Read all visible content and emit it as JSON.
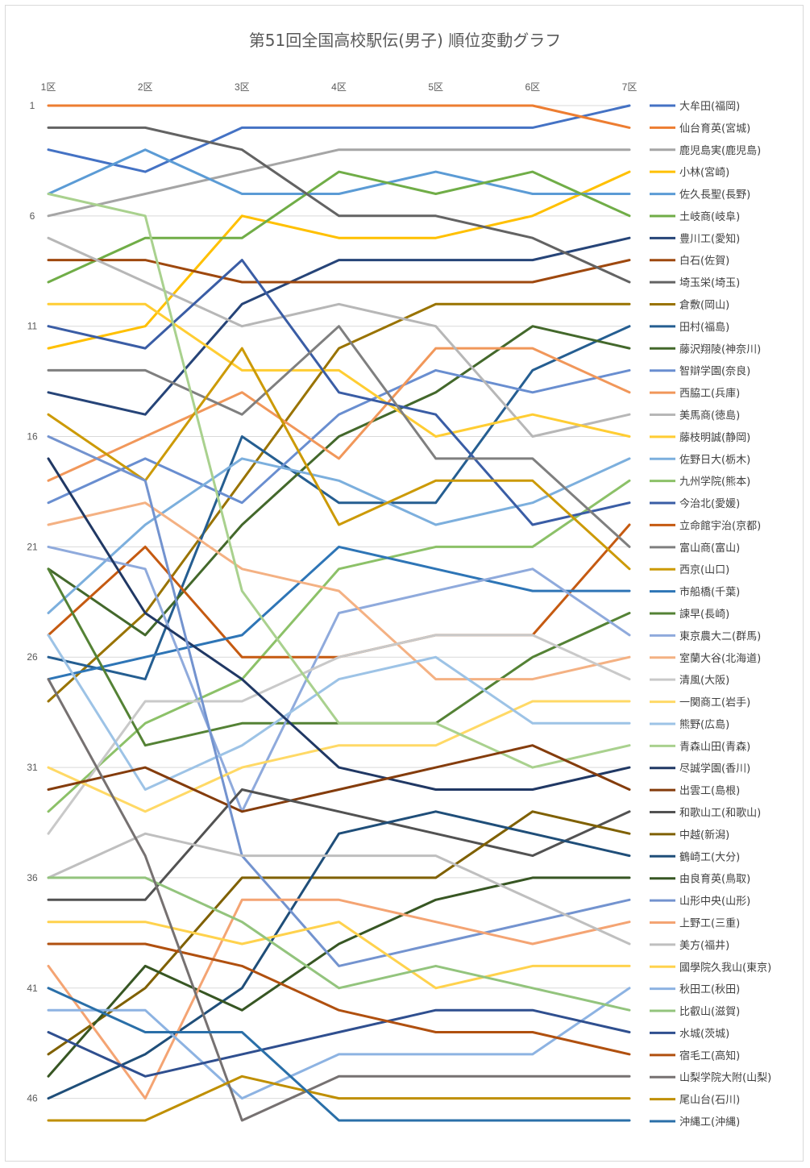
{
  "chart_data": {
    "type": "line",
    "title": "第51回全国高校駅伝(男子) 順位変動グラフ",
    "categories": [
      "1区",
      "2区",
      "3区",
      "4区",
      "5区",
      "6区",
      "7区"
    ],
    "y_ticks": [
      "1",
      "6",
      "11",
      "16",
      "21",
      "26",
      "31",
      "36",
      "41",
      "46"
    ],
    "ylim": [
      1,
      47
    ],
    "y_reversed": true,
    "grid": true,
    "legend_position": "right",
    "series": [
      {
        "name": "大牟田(福岡)",
        "color": "#4472c4",
        "values": [
          3,
          4,
          2,
          2,
          2,
          2,
          1
        ]
      },
      {
        "name": "仙台育英(宮城)",
        "color": "#ed7d31",
        "values": [
          1,
          1,
          1,
          1,
          1,
          1,
          2
        ]
      },
      {
        "name": "鹿児島実(鹿児島)",
        "color": "#a5a5a5",
        "values": [
          6,
          5,
          4,
          3,
          3,
          3,
          3
        ]
      },
      {
        "name": "小林(宮崎)",
        "color": "#ffc000",
        "values": [
          12,
          11,
          6,
          7,
          7,
          6,
          4
        ]
      },
      {
        "name": "佐久長聖(長野)",
        "color": "#5b9bd5",
        "values": [
          5,
          3,
          5,
          5,
          4,
          5,
          5
        ]
      },
      {
        "name": "土岐商(岐阜)",
        "color": "#70ad47",
        "values": [
          9,
          7,
          7,
          4,
          5,
          4,
          6
        ]
      },
      {
        "name": "豊川工(愛知)",
        "color": "#264478",
        "values": [
          14,
          15,
          10,
          8,
          8,
          8,
          7
        ]
      },
      {
        "name": "白石(佐賀)",
        "color": "#9e480e",
        "values": [
          8,
          8,
          9,
          9,
          9,
          9,
          8
        ]
      },
      {
        "name": "埼玉栄(埼玉)",
        "color": "#636363",
        "values": [
          2,
          2,
          3,
          6,
          6,
          7,
          9
        ]
      },
      {
        "name": "倉敷(岡山)",
        "color": "#997300",
        "values": [
          28,
          24,
          18,
          12,
          10,
          10,
          10
        ]
      },
      {
        "name": "田村(福島)",
        "color": "#255e91",
        "values": [
          26,
          27,
          16,
          19,
          19,
          13,
          11
        ]
      },
      {
        "name": "藤沢翔陵(神奈川)",
        "color": "#43682b",
        "values": [
          22,
          25,
          20,
          16,
          14,
          11,
          12
        ]
      },
      {
        "name": "智辯学園(奈良)",
        "color": "#698ed0",
        "values": [
          19,
          17,
          19,
          15,
          13,
          14,
          13
        ]
      },
      {
        "name": "西脇工(兵庫)",
        "color": "#f1975a",
        "values": [
          18,
          16,
          14,
          17,
          12,
          12,
          14
        ]
      },
      {
        "name": "美馬商(徳島)",
        "color": "#b7b7b7",
        "values": [
          7,
          9,
          11,
          10,
          11,
          16,
          15
        ]
      },
      {
        "name": "藤枝明誠(静岡)",
        "color": "#ffcd33",
        "values": [
          10,
          10,
          13,
          13,
          16,
          15,
          16
        ]
      },
      {
        "name": "佐野日大(栃木)",
        "color": "#7cafdd",
        "values": [
          24,
          20,
          17,
          18,
          20,
          19,
          17
        ]
      },
      {
        "name": "九州学院(熊本)",
        "color": "#8cc168",
        "values": [
          33,
          29,
          27,
          22,
          21,
          21,
          18
        ]
      },
      {
        "name": "今治北(愛媛)",
        "color": "#3a5da5",
        "values": [
          11,
          12,
          8,
          14,
          15,
          20,
          19
        ]
      },
      {
        "name": "立命館宇治(京都)",
        "color": "#c55a11",
        "values": [
          25,
          21,
          26,
          26,
          25,
          25,
          20
        ]
      },
      {
        "name": "富山商(富山)",
        "color": "#7f7f7f",
        "values": [
          13,
          13,
          15,
          11,
          17,
          17,
          21
        ]
      },
      {
        "name": "西京(山口)",
        "color": "#cc9a06",
        "values": [
          15,
          18,
          12,
          20,
          18,
          18,
          22
        ]
      },
      {
        "name": "市船橋(千葉)",
        "color": "#2e75b6",
        "values": [
          27,
          26,
          25,
          21,
          22,
          23,
          23
        ]
      },
      {
        "name": "諫早(長崎)",
        "color": "#548235",
        "values": [
          22,
          30,
          29,
          29,
          29,
          26,
          24
        ]
      },
      {
        "name": "東京農大二(群馬)",
        "color": "#8faadc",
        "values": [
          21,
          22,
          33,
          24,
          23,
          22,
          25
        ]
      },
      {
        "name": "室蘭大谷(北海道)",
        "color": "#f4b183",
        "values": [
          20,
          19,
          22,
          23,
          27,
          27,
          26
        ]
      },
      {
        "name": "清風(大阪)",
        "color": "#c9c9c9",
        "values": [
          34,
          28,
          28,
          26,
          25,
          25,
          27
        ]
      },
      {
        "name": "一関商工(岩手)",
        "color": "#ffd966",
        "values": [
          31,
          33,
          31,
          30,
          30,
          28,
          28
        ]
      },
      {
        "name": "熊野(広島)",
        "color": "#9dc3e6",
        "values": [
          25,
          32,
          30,
          27,
          26,
          29,
          29
        ]
      },
      {
        "name": "青森山田(青森)",
        "color": "#a9d18e",
        "values": [
          5,
          6,
          23,
          29,
          29,
          31,
          30
        ]
      },
      {
        "name": "尽誠学園(香川)",
        "color": "#203864",
        "values": [
          17,
          24,
          27,
          31,
          32,
          32,
          31
        ]
      },
      {
        "name": "出雲工(島根)",
        "color": "#843c0c",
        "values": [
          32,
          31,
          33,
          32,
          31,
          30,
          32
        ]
      },
      {
        "name": "和歌山工(和歌山)",
        "color": "#525252",
        "values": [
          37,
          37,
          32,
          33,
          34,
          35,
          33
        ]
      },
      {
        "name": "中越(新潟)",
        "color": "#7f6000",
        "values": [
          44,
          41,
          36,
          36,
          36,
          33,
          34
        ]
      },
      {
        "name": "鶴崎工(大分)",
        "color": "#1f4e79",
        "values": [
          46,
          44,
          41,
          34,
          33,
          34,
          35
        ]
      },
      {
        "name": "由良育英(鳥取)",
        "color": "#375623",
        "values": [
          45,
          40,
          42,
          39,
          37,
          36,
          36
        ]
      },
      {
        "name": "山形中央(山形)",
        "color": "#7393cf",
        "values": [
          16,
          18,
          35,
          40,
          39,
          38,
          37
        ]
      },
      {
        "name": "上野工(三重)",
        "color": "#f4a473",
        "values": [
          40,
          46,
          37,
          37,
          38,
          39,
          38
        ]
      },
      {
        "name": "美方(福井)",
        "color": "#bfbfbf",
        "values": [
          36,
          34,
          35,
          35,
          35,
          37,
          39
        ]
      },
      {
        "name": "國學院久我山(東京)",
        "color": "#ffd24d",
        "values": [
          38,
          38,
          39,
          38,
          41,
          40,
          40
        ]
      },
      {
        "name": "秋田工(秋田)",
        "color": "#8db3e2",
        "values": [
          42,
          42,
          46,
          44,
          44,
          44,
          41
        ]
      },
      {
        "name": "比叡山(滋賀)",
        "color": "#93c47d",
        "values": [
          36,
          36,
          38,
          41,
          40,
          41,
          42
        ]
      },
      {
        "name": "水城(茨城)",
        "color": "#2f4f8f",
        "values": [
          43,
          45,
          44,
          43,
          42,
          42,
          43
        ]
      },
      {
        "name": "宿毛工(高知)",
        "color": "#b0500f",
        "values": [
          39,
          39,
          40,
          42,
          43,
          43,
          44
        ]
      },
      {
        "name": "山梨学院大附(山梨)",
        "color": "#767171",
        "values": [
          27,
          35,
          47,
          45,
          45,
          45,
          45
        ]
      },
      {
        "name": "尾山台(石川)",
        "color": "#bf8f00",
        "values": [
          47,
          47,
          45,
          46,
          46,
          46,
          46
        ]
      },
      {
        "name": "沖縄工(沖縄)",
        "color": "#2a6fa8",
        "values": [
          41,
          43,
          43,
          47,
          47,
          47,
          47
        ]
      }
    ]
  }
}
